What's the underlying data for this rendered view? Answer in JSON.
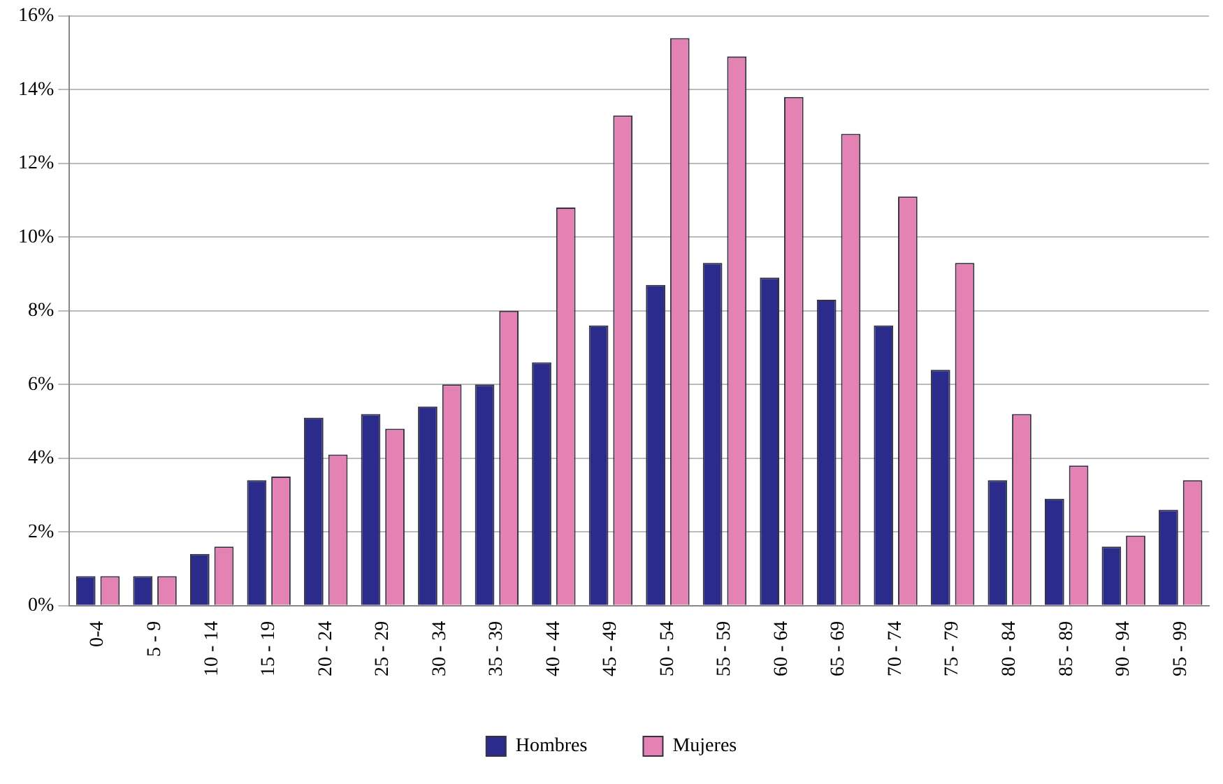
{
  "chart_data": {
    "type": "bar",
    "categories": [
      "0-4",
      "5 - 9",
      "10 - 14",
      "15 - 19",
      "20 - 24",
      "25 - 29",
      "30 - 34",
      "35 - 39",
      "40 - 44",
      "45 - 49",
      "50 - 54",
      "55 - 59",
      "60 - 64",
      "65 - 69",
      "70 - 74",
      "75 - 79",
      "80 - 84",
      "85 - 89",
      "90 - 94",
      "95 - 99"
    ],
    "series": [
      {
        "name": "Hombres",
        "color": "#2b2b8c",
        "values": [
          0.8,
          0.8,
          1.4,
          3.4,
          5.1,
          5.2,
          5.4,
          6.0,
          6.6,
          7.6,
          8.7,
          9.3,
          8.9,
          8.3,
          7.6,
          6.4,
          3.4,
          2.9,
          1.6,
          2.6
        ]
      },
      {
        "name": "Mujeres",
        "color": "#e582b4",
        "values": [
          0.8,
          0.8,
          1.6,
          3.5,
          4.1,
          4.8,
          6.0,
          8.0,
          10.8,
          13.3,
          15.4,
          14.9,
          13.8,
          12.8,
          11.1,
          9.3,
          5.2,
          3.8,
          1.9,
          3.4
        ]
      }
    ],
    "ylim": [
      0,
      16
    ],
    "yticks": [
      {
        "value": 0,
        "label": "0%"
      },
      {
        "value": 2,
        "label": "2%"
      },
      {
        "value": 4,
        "label": "4%"
      },
      {
        "value": 6,
        "label": "6%"
      },
      {
        "value": 8,
        "label": "8%"
      },
      {
        "value": 10,
        "label": "10%"
      },
      {
        "value": 12,
        "label": "12%"
      },
      {
        "value": 14,
        "label": "14%"
      },
      {
        "value": 16,
        "label": "16%"
      }
    ],
    "grid": "y",
    "legend": "bottom"
  }
}
